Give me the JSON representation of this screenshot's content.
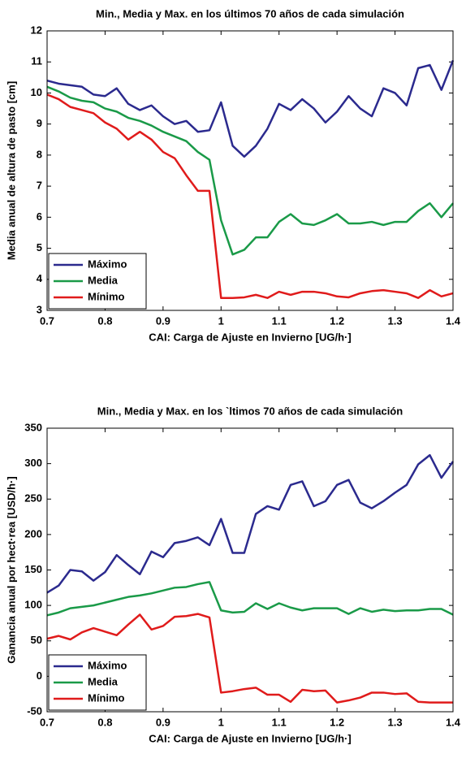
{
  "chart_data": [
    {
      "type": "line",
      "title": "Min., Media y Max. en los últimos 70 años de cada simulación",
      "xlabel": "CAI: Carga de Ajuste en Invierno [UG/h·]",
      "ylabel": "Media anual de altura de pasto [cm]",
      "x": [
        0.7,
        0.72,
        0.74,
        0.76,
        0.78,
        0.8,
        0.82,
        0.84,
        0.86,
        0.88,
        0.9,
        0.92,
        0.94,
        0.96,
        0.98,
        1.0,
        1.02,
        1.04,
        1.06,
        1.08,
        1.1,
        1.12,
        1.14,
        1.16,
        1.18,
        1.2,
        1.22,
        1.24,
        1.26,
        1.28,
        1.3,
        1.32,
        1.34,
        1.36,
        1.38,
        1.4
      ],
      "series": [
        {
          "name": "Máximo",
          "color": "#2b2a8e",
          "values": [
            10.4,
            10.3,
            10.25,
            10.2,
            9.95,
            9.9,
            10.15,
            9.65,
            9.45,
            9.6,
            9.25,
            9.0,
            9.1,
            8.75,
            8.8,
            9.7,
            8.3,
            7.95,
            8.3,
            8.85,
            9.65,
            9.45,
            9.8,
            9.5,
            9.05,
            9.4,
            9.9,
            9.5,
            9.25,
            10.15,
            10.0,
            9.6,
            10.8,
            10.9,
            10.1,
            11.05
          ]
        },
        {
          "name": "Media",
          "color": "#1a9a48",
          "values": [
            10.2,
            10.05,
            9.85,
            9.75,
            9.7,
            9.5,
            9.4,
            9.2,
            9.1,
            8.95,
            8.75,
            8.6,
            8.45,
            8.1,
            7.85,
            5.9,
            4.8,
            4.95,
            5.35,
            5.35,
            5.85,
            6.1,
            5.8,
            5.75,
            5.9,
            6.1,
            5.8,
            5.8,
            5.85,
            5.75,
            5.85,
            5.85,
            6.2,
            6.45,
            6.0,
            6.45
          ]
        },
        {
          "name": "Mínimo",
          "color": "#e01b1b",
          "values": [
            9.95,
            9.8,
            9.55,
            9.45,
            9.35,
            9.05,
            8.85,
            8.5,
            8.75,
            8.5,
            8.1,
            7.9,
            7.35,
            6.85,
            6.85,
            3.4,
            3.4,
            3.42,
            3.5,
            3.4,
            3.6,
            3.5,
            3.6,
            3.6,
            3.55,
            3.45,
            3.42,
            3.55,
            3.62,
            3.65,
            3.6,
            3.55,
            3.4,
            3.65,
            3.45,
            3.55
          ]
        }
      ],
      "xlim": [
        0.7,
        1.4
      ],
      "xticks": [
        0.7,
        0.8,
        0.9,
        1,
        1.1,
        1.2,
        1.3,
        1.4
      ],
      "ylim": [
        3,
        12
      ],
      "yticks": [
        3,
        4,
        5,
        6,
        7,
        8,
        9,
        10,
        11,
        12
      ],
      "legend": "lower left"
    },
    {
      "type": "line",
      "title": "Min., Media y Max. en los `ltimos 70 años de cada simulación",
      "xlabel": "CAI: Carga de Ajuste en Invierno [UG/h·]",
      "ylabel": "Ganancia anual por hect·rea [USD/h·]",
      "x": [
        0.7,
        0.72,
        0.74,
        0.76,
        0.78,
        0.8,
        0.82,
        0.84,
        0.86,
        0.88,
        0.9,
        0.92,
        0.94,
        0.96,
        0.98,
        1.0,
        1.02,
        1.04,
        1.06,
        1.08,
        1.1,
        1.12,
        1.14,
        1.16,
        1.18,
        1.2,
        1.22,
        1.24,
        1.26,
        1.28,
        1.3,
        1.32,
        1.34,
        1.36,
        1.38,
        1.4
      ],
      "series": [
        {
          "name": "Máximo",
          "color": "#2b2a8e",
          "values": [
            118,
            128,
            150,
            148,
            135,
            147,
            171,
            157,
            144,
            176,
            168,
            188,
            191,
            196,
            185,
            222,
            174,
            174,
            229,
            240,
            235,
            270,
            275,
            240,
            247,
            270,
            277,
            245,
            237,
            247,
            259,
            270,
            299,
            312,
            280,
            303
          ]
        },
        {
          "name": "Media",
          "color": "#1a9a48",
          "values": [
            86,
            90,
            96,
            98,
            100,
            104,
            108,
            112,
            114,
            117,
            121,
            125,
            126,
            130,
            133,
            93,
            90,
            91,
            103,
            95,
            103,
            97,
            93,
            96,
            96,
            96,
            88,
            96,
            91,
            94,
            92,
            93,
            93,
            95,
            95,
            87
          ]
        },
        {
          "name": "Mínimo",
          "color": "#e01b1b",
          "values": [
            53,
            57,
            52,
            62,
            68,
            63,
            58,
            73,
            87,
            66,
            71,
            84,
            85,
            88,
            83,
            -23,
            -21,
            -18,
            -16,
            -26,
            -26,
            -36,
            -19,
            -21,
            -20,
            -37,
            -34,
            -30,
            -23,
            -23,
            -25,
            -24,
            -36,
            -37,
            -37,
            -37
          ]
        }
      ],
      "xlim": [
        0.7,
        1.4
      ],
      "xticks": [
        0.7,
        0.8,
        0.9,
        1,
        1.1,
        1.2,
        1.3,
        1.4
      ],
      "ylim": [
        -50,
        350
      ],
      "yticks": [
        -50,
        0,
        50,
        100,
        150,
        200,
        250,
        300,
        350
      ],
      "legend": "lower left"
    }
  ]
}
